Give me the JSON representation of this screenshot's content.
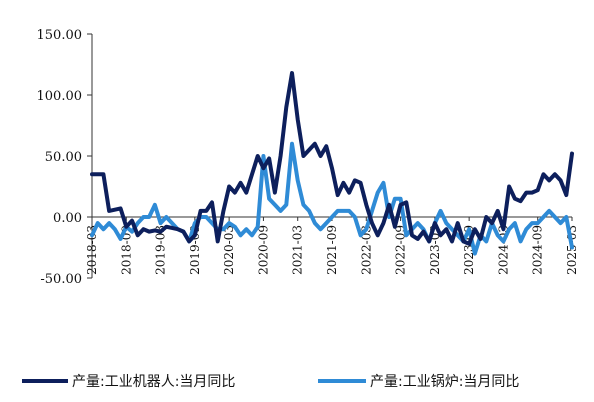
{
  "chart_data": {
    "type": "line",
    "title": "",
    "xlabel": "",
    "ylabel": "",
    "ylim": [
      -50,
      150
    ],
    "yticks": [
      -50,
      0,
      50,
      100,
      150
    ],
    "ytick_labels": [
      "-50.00",
      "0.00",
      "50.00",
      "100.00",
      "150.00"
    ],
    "grid": false,
    "legend_position": "bottom",
    "x": [
      "2018-03",
      "2018-04",
      "2018-05",
      "2018-06",
      "2018-07",
      "2018-08",
      "2018-09",
      "2018-10",
      "2018-11",
      "2018-12",
      "2019-01",
      "2019-02",
      "2019-03",
      "2019-04",
      "2019-05",
      "2019-06",
      "2019-07",
      "2019-08",
      "2019-09",
      "2019-10",
      "2019-11",
      "2019-12",
      "2020-01",
      "2020-02",
      "2020-03",
      "2020-04",
      "2020-05",
      "2020-06",
      "2020-07",
      "2020-08",
      "2020-09",
      "2020-10",
      "2020-11",
      "2020-12",
      "2021-01",
      "2021-02",
      "2021-03",
      "2021-04",
      "2021-05",
      "2021-06",
      "2021-07",
      "2021-08",
      "2021-09",
      "2021-10",
      "2021-11",
      "2021-12",
      "2022-01",
      "2022-02",
      "2022-03",
      "2022-04",
      "2022-05",
      "2022-06",
      "2022-07",
      "2022-08",
      "2022-09",
      "2022-10",
      "2022-11",
      "2022-12",
      "2023-01",
      "2023-02",
      "2023-03",
      "2023-04",
      "2023-05",
      "2023-06",
      "2023-07",
      "2023-08",
      "2023-09",
      "2023-10",
      "2023-11",
      "2023-12",
      "2024-01",
      "2024-02",
      "2024-03",
      "2024-04",
      "2024-05",
      "2024-06",
      "2024-07",
      "2024-08",
      "2024-09",
      "2024-10",
      "2024-11",
      "2024-12",
      "2025-01",
      "2025-02",
      "2025-03"
    ],
    "xtick_labels": [
      "2018-03",
      "2018-09",
      "2019-03",
      "2019-09",
      "2020-03",
      "2020-09",
      "2021-03",
      "2021-09",
      "2022-03",
      "2022-09",
      "2023-03",
      "2023-09",
      "2024-03",
      "2024-09",
      "2025-03"
    ],
    "series": [
      {
        "name": "产量:工业机器人:当月同比",
        "color": "#0d1f5c",
        "values": [
          35,
          35,
          35,
          5,
          6,
          7,
          -8,
          -3,
          -15,
          -10,
          -12,
          -11,
          -12,
          -8,
          -9,
          -10,
          -12,
          -20,
          -15,
          5,
          5,
          12,
          -20,
          5,
          25,
          20,
          28,
          20,
          35,
          50,
          40,
          48,
          20,
          50,
          90,
          118,
          80,
          50,
          55,
          60,
          50,
          58,
          40,
          18,
          28,
          20,
          30,
          28,
          10,
          -5,
          -15,
          -5,
          10,
          -8,
          10,
          12,
          -15,
          -18,
          -12,
          -20,
          -5,
          -15,
          -10,
          -20,
          -5,
          -20,
          -22,
          -10,
          -18,
          0,
          -5,
          5,
          -10,
          25,
          15,
          13,
          20,
          20,
          22,
          35,
          30,
          35,
          30,
          18,
          52
        ]
      },
      {
        "name": "产量:工业锅炉:当月同比",
        "color": "#2f8bd6",
        "values": [
          -15,
          -5,
          -10,
          -5,
          -10,
          -18,
          -8,
          -12,
          -5,
          0,
          0,
          10,
          -5,
          0,
          -5,
          -10,
          -12,
          -20,
          -5,
          0,
          0,
          -5,
          -10,
          -10,
          -5,
          -8,
          -15,
          -10,
          -15,
          -8,
          50,
          15,
          10,
          5,
          10,
          60,
          30,
          10,
          5,
          -5,
          -10,
          -5,
          0,
          5,
          5,
          5,
          0,
          -15,
          -10,
          5,
          20,
          28,
          0,
          15,
          15,
          -15,
          -10,
          -5,
          -10,
          -20,
          -5,
          5,
          -5,
          -10,
          -15,
          -20,
          -10,
          -30,
          -15,
          -20,
          -5,
          -15,
          -20,
          -10,
          -5,
          -20,
          -10,
          -5,
          -5,
          0,
          5,
          0,
          -5,
          0,
          -25
        ]
      }
    ]
  }
}
